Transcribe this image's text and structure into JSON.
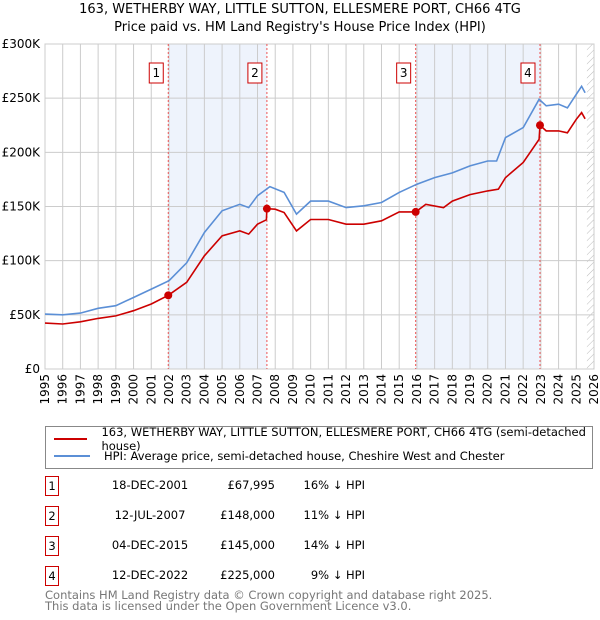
{
  "title": "163, WETHERBY WAY, LITTLE SUTTON, ELLESMERE PORT, CH66 4TG",
  "subtitle": "Price paid vs. HM Land Registry's House Price Index (HPI)",
  "chart_data": {
    "type": "line",
    "ylim": [
      0,
      300000
    ],
    "xlim": [
      1995,
      2026
    ],
    "y_ticks": [
      {
        "v": 0,
        "label": "£0"
      },
      {
        "v": 50000,
        "label": "£50K"
      },
      {
        "v": 100000,
        "label": "£100K"
      },
      {
        "v": 150000,
        "label": "£150K"
      },
      {
        "v": 200000,
        "label": "£200K"
      },
      {
        "v": 250000,
        "label": "£250K"
      },
      {
        "v": 300000,
        "label": "£300K"
      }
    ],
    "x_ticks": [
      "1995",
      "1996",
      "1997",
      "1998",
      "1999",
      "2000",
      "2001",
      "2002",
      "2003",
      "2004",
      "2005",
      "2006",
      "2007",
      "2008",
      "2009",
      "2010",
      "2011",
      "2012",
      "2013",
      "2014",
      "2015",
      "2016",
      "2017",
      "2018",
      "2019",
      "2020",
      "2021",
      "2022",
      "2023",
      "2024",
      "2025",
      "2026"
    ],
    "grid": true,
    "shaded_ranges": [
      [
        2001.96,
        2007.53
      ],
      [
        2015.93,
        2022.95
      ]
    ],
    "forecast_from": 2025.6,
    "series": [
      {
        "name": "163, WETHERBY WAY, LITTLE SUTTON, ELLESMERE PORT, CH66 4TG (semi-detached house)",
        "color": "#cc0000",
        "points": [
          [
            1995,
            42400
          ],
          [
            1996,
            41500
          ],
          [
            1997,
            43600
          ],
          [
            1998,
            46700
          ],
          [
            1999,
            49000
          ],
          [
            2000,
            53800
          ],
          [
            2001,
            60000
          ],
          [
            2001.96,
            68000
          ],
          [
            2003,
            80000
          ],
          [
            2004,
            104500
          ],
          [
            2005,
            123000
          ],
          [
            2006,
            127500
          ],
          [
            2006.5,
            124500
          ],
          [
            2007,
            133700
          ],
          [
            2007.5,
            137700
          ],
          [
            2007.53,
            148000
          ],
          [
            2008,
            147500
          ],
          [
            2008.5,
            144500
          ],
          [
            2009.2,
            127500
          ],
          [
            2010,
            138000
          ],
          [
            2011,
            138000
          ],
          [
            2012,
            133700
          ],
          [
            2013,
            133700
          ],
          [
            2014,
            136800
          ],
          [
            2015,
            145000
          ],
          [
            2015.93,
            145000
          ],
          [
            2016.5,
            152000
          ],
          [
            2017.5,
            149000
          ],
          [
            2018,
            155000
          ],
          [
            2019,
            161000
          ],
          [
            2020,
            164400
          ],
          [
            2020.6,
            166000
          ],
          [
            2021,
            176700
          ],
          [
            2022,
            190600
          ],
          [
            2022.9,
            212000
          ],
          [
            2022.95,
            225000
          ],
          [
            2023.3,
            219800
          ],
          [
            2024,
            219800
          ],
          [
            2024.5,
            218000
          ],
          [
            2025,
            230500
          ],
          [
            2025.3,
            236700
          ],
          [
            2025.5,
            231000
          ]
        ]
      },
      {
        "name": "HPI: Average price, semi-detached house, Cheshire West and Chester",
        "color": "#5b8fd6",
        "points": [
          [
            1995,
            50700
          ],
          [
            1996,
            50000
          ],
          [
            1997,
            51600
          ],
          [
            1998,
            56000
          ],
          [
            1999,
            58400
          ],
          [
            2000,
            66000
          ],
          [
            2001,
            73800
          ],
          [
            2002,
            81500
          ],
          [
            2003,
            98000
          ],
          [
            2004,
            126000
          ],
          [
            2005,
            146000
          ],
          [
            2006,
            152000
          ],
          [
            2006.5,
            149000
          ],
          [
            2007,
            160000
          ],
          [
            2007.7,
            168400
          ],
          [
            2008.5,
            163000
          ],
          [
            2009.2,
            143000
          ],
          [
            2010,
            155000
          ],
          [
            2011,
            155000
          ],
          [
            2012,
            149000
          ],
          [
            2013,
            150600
          ],
          [
            2014,
            153700
          ],
          [
            2015,
            163000
          ],
          [
            2016,
            170600
          ],
          [
            2017,
            176700
          ],
          [
            2018,
            181000
          ],
          [
            2019,
            187500
          ],
          [
            2020,
            192000
          ],
          [
            2020.5,
            192000
          ],
          [
            2021,
            213600
          ],
          [
            2022,
            222800
          ],
          [
            2022.9,
            249000
          ],
          [
            2023.3,
            243000
          ],
          [
            2024,
            244400
          ],
          [
            2024.5,
            241000
          ],
          [
            2025,
            253600
          ],
          [
            2025.3,
            261000
          ],
          [
            2025.5,
            255000
          ]
        ]
      }
    ],
    "sales": [
      {
        "n": "1",
        "x": 2001.96,
        "y": 67995
      },
      {
        "n": "2",
        "x": 2007.53,
        "y": 148000
      },
      {
        "n": "3",
        "x": 2015.93,
        "y": 145000
      },
      {
        "n": "4",
        "x": 2022.95,
        "y": 225000
      }
    ]
  },
  "legend": {
    "red": "163, WETHERBY WAY, LITTLE SUTTON, ELLESMERE PORT, CH66 4TG (semi-detached house)",
    "blue": "HPI: Average price, semi-detached house, Cheshire West and Chester"
  },
  "transactions": [
    {
      "n": "1",
      "date": "18-DEC-2001",
      "price": "£67,995",
      "hpi": "16% ↓ HPI"
    },
    {
      "n": "2",
      "date": "12-JUL-2007",
      "price": "£148,000",
      "hpi": "11% ↓ HPI"
    },
    {
      "n": "3",
      "date": "04-DEC-2015",
      "price": "£145,000",
      "hpi": "14% ↓ HPI"
    },
    {
      "n": "4",
      "date": "12-DEC-2022",
      "price": "£225,000",
      "hpi": "9% ↓ HPI"
    }
  ],
  "footer": {
    "line1": "Contains HM Land Registry data © Crown copyright and database right 2025.",
    "line2": "This data is licensed under the Open Government Licence v3.0."
  }
}
